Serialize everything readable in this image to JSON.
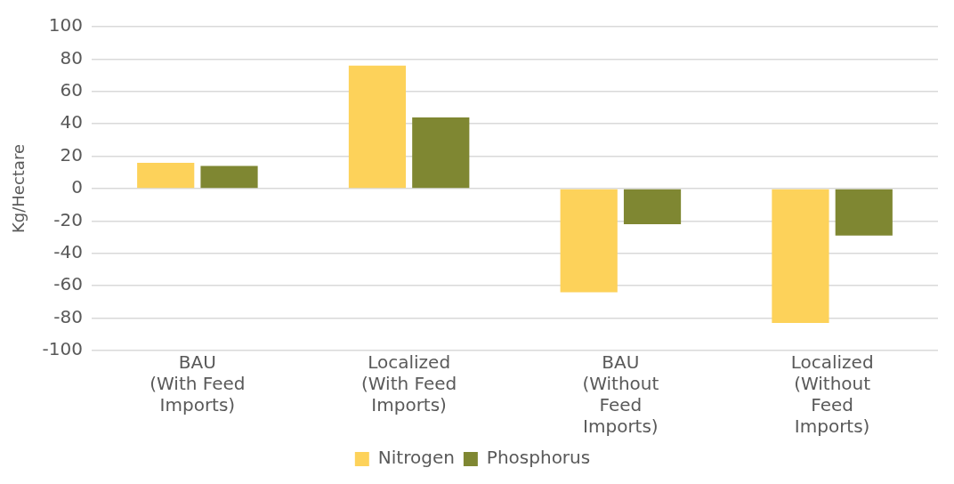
{
  "chart_data": {
    "type": "bar",
    "ylabel": "Kg/Hectare",
    "categories": [
      "BAU (With Feed Imports)",
      "Localized (With Feed Imports)",
      "BAU (Without Feed Imports)",
      "Localized (Without Feed Imports)"
    ],
    "series": [
      {
        "name": "Nitrogen",
        "color": "#fdd25a",
        "values": [
          16,
          76,
          -64,
          -83
        ]
      },
      {
        "name": "Phosphorus",
        "color": "#7f8732",
        "values": [
          14,
          44,
          -22,
          -29
        ]
      }
    ],
    "ylim": [
      -100,
      100
    ],
    "yticks": [
      -100,
      -80,
      -60,
      -40,
      -20,
      0,
      20,
      40,
      60,
      80,
      100
    ],
    "grid": "y",
    "legend": "bottom"
  }
}
